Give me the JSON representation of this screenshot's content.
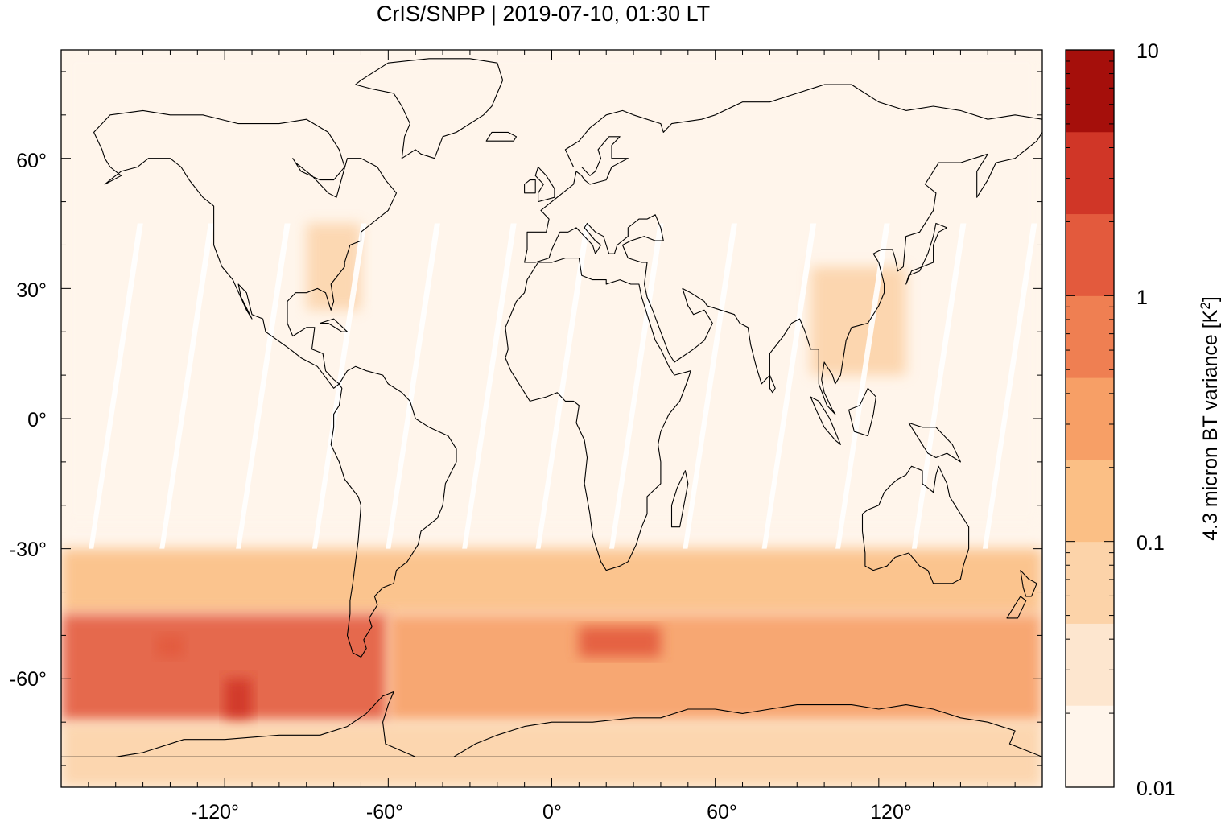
{
  "title": "CrIS/SNPP | 2019-07-10, 01:30 LT",
  "map": {
    "projection": "equirectangular",
    "lon_range": [
      -180,
      180
    ],
    "lat_range": [
      -85,
      85
    ],
    "x_ticks": [
      {
        "value": -120,
        "label": "-120°"
      },
      {
        "value": -60,
        "label": "-60°"
      },
      {
        "value": 0,
        "label": "0°"
      },
      {
        "value": 60,
        "label": "60°"
      },
      {
        "value": 120,
        "label": "120°"
      }
    ],
    "y_ticks": [
      {
        "value": 60,
        "label": "60°"
      },
      {
        "value": 30,
        "label": "30°"
      },
      {
        "value": 0,
        "label": "0°"
      },
      {
        "value": -30,
        "label": "-30°"
      },
      {
        "value": -60,
        "label": "-60°"
      }
    ],
    "background_color": "#fff5eb"
  },
  "colorbar": {
    "title": "4.3 micron BT variance [K",
    "title_superscript": "2",
    "title_suffix": "]",
    "scale": "log",
    "range": [
      0.01,
      10
    ],
    "tick_labels": [
      {
        "value": 10,
        "label": "10"
      },
      {
        "value": 1,
        "label": "1"
      },
      {
        "value": 0.1,
        "label": "0.1"
      },
      {
        "value": 0.01,
        "label": "0.01"
      }
    ],
    "colors": [
      "#fff5eb",
      "#fee6ce",
      "#fdd0a2",
      "#fdae6b",
      "#fd8d3c",
      "#f16913",
      "#e6550d",
      "#d94801",
      "#a63603",
      "#7f2704"
    ],
    "bands": [
      "#fff5eb",
      "#fde6cf",
      "#fcd3a9",
      "#fbbf85",
      "#f79f66",
      "#ef7f52",
      "#e35a3d",
      "#d03627",
      "#a50f0b"
    ]
  },
  "chart_data": {
    "type": "heatmap",
    "title": "CrIS/SNPP | 2019-07-10, 01:30 LT",
    "xlabel": "",
    "ylabel": "",
    "xlim": [
      -180,
      180
    ],
    "ylim": [
      -85,
      85
    ],
    "colorbar_label": "4.3 micron BT variance [K^2]",
    "color_scale": "log",
    "color_range": [
      0.01,
      10
    ],
    "regions": [
      {
        "lon": [
          -180,
          180
        ],
        "lat": [
          -25,
          85
        ],
        "variance": 0.015
      },
      {
        "lon": [
          -180,
          180
        ],
        "lat": [
          -45,
          -30
        ],
        "variance": 0.2
      },
      {
        "lon": [
          -180,
          -60
        ],
        "lat": [
          -70,
          -45
        ],
        "variance": 1.0
      },
      {
        "lon": [
          -60,
          180
        ],
        "lat": [
          -70,
          -45
        ],
        "variance": 0.4
      },
      {
        "lon": [
          -120,
          -110
        ],
        "lat": [
          -70,
          -60
        ],
        "variance": 3.0
      },
      {
        "lon": [
          -145,
          -135
        ],
        "lat": [
          -55,
          -50
        ],
        "variance": 2.0
      },
      {
        "lon": [
          10,
          40
        ],
        "lat": [
          -55,
          -48
        ],
        "variance": 2.0
      },
      {
        "lon": [
          -180,
          180
        ],
        "lat": [
          -85,
          -70
        ],
        "variance": 0.08
      },
      {
        "lon": [
          95,
          130
        ],
        "lat": [
          10,
          35
        ],
        "variance": 0.08
      },
      {
        "lon": [
          -90,
          -70
        ],
        "lat": [
          25,
          45
        ],
        "variance": 0.05
      }
    ]
  }
}
